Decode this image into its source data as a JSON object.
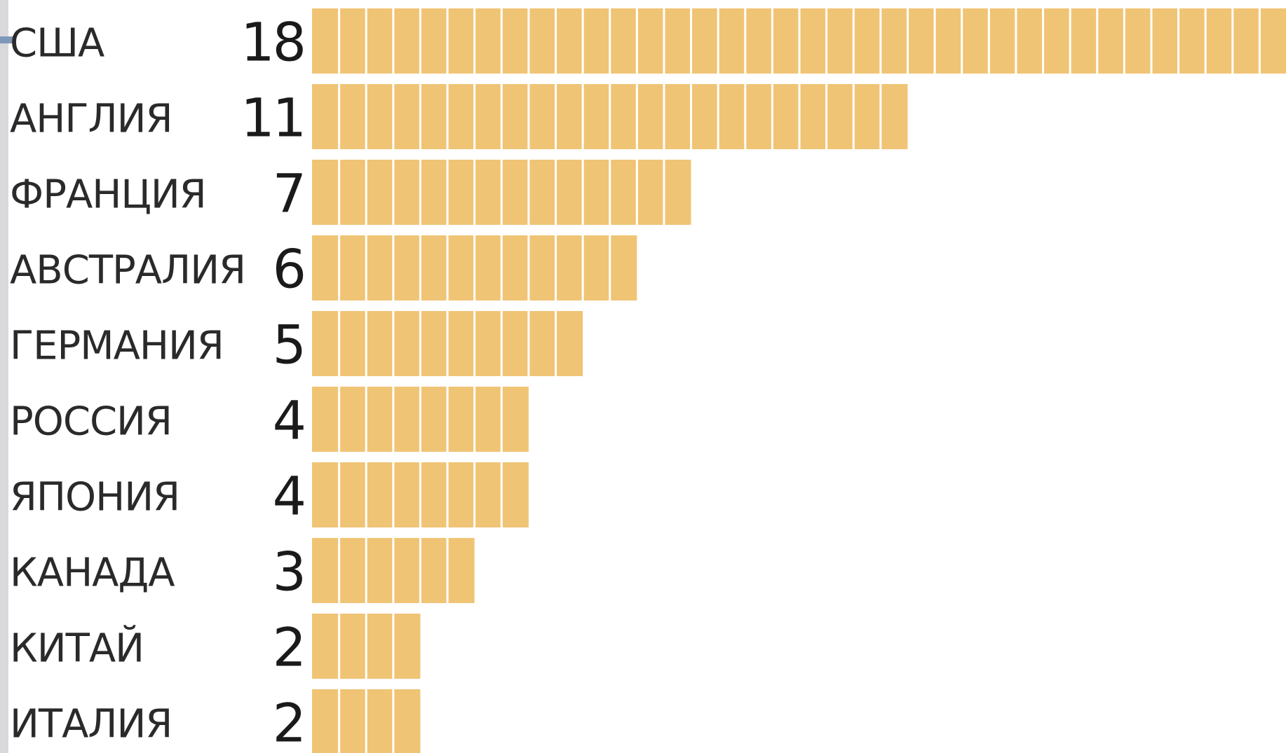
{
  "colors": {
    "bar_fill": "#f0c475",
    "bar_divider": "#ffffff",
    "text": "#2a2a2a"
  },
  "chart_data": {
    "type": "bar",
    "orientation": "horizontal",
    "categories": [
      "США",
      "АНГЛИЯ",
      "ФРАНЦИЯ",
      "АВСТРАЛИЯ",
      "ГЕРМАНИЯ",
      "РОССИЯ",
      "ЯПОНИЯ",
      "КАНАДА",
      "КИТАЙ",
      "ИТАЛИЯ"
    ],
    "values": [
      18,
      11,
      7,
      6,
      5,
      4,
      4,
      3,
      2,
      2
    ],
    "title": "",
    "xlabel": "",
    "ylabel": "",
    "grid": false,
    "legend": "none"
  }
}
